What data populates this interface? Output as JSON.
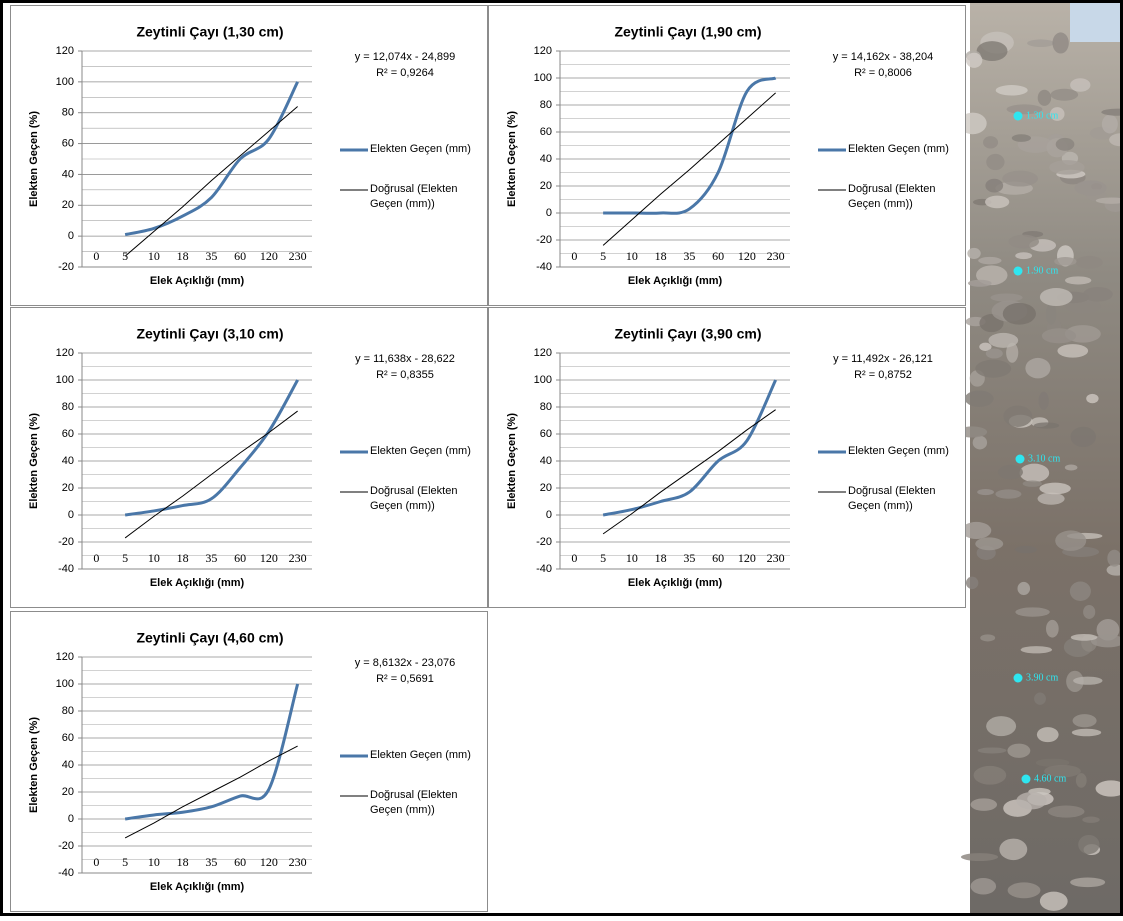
{
  "chart_data": [
    {
      "type": "line",
      "title": "Zeytinli Çayı (1,30 cm)",
      "y_label": "Elekten Geçen (%)",
      "x_label": "Elek Açıklığı (mm)",
      "categories": [
        "0",
        "5",
        "10",
        "18",
        "35",
        "60",
        "120",
        "230"
      ],
      "series": [
        {
          "name": "Elekten Geçen (mm)",
          "color": "#4a77a8",
          "values": [
            null,
            1,
            5,
            13,
            25,
            50,
            63,
            100
          ]
        },
        {
          "name": "Doğrusal (Elekten Geçen (mm))",
          "color": "#000000",
          "values": [
            null,
            -13,
            3,
            19,
            36,
            52,
            68,
            84
          ]
        }
      ],
      "annotations": [
        "y = 12,074x - 24,899",
        "R² = 0,9264"
      ],
      "ylim": [
        -20,
        120
      ],
      "yticks": [
        -20,
        0,
        20,
        40,
        60,
        80,
        100,
        120
      ],
      "grid": true
    },
    {
      "type": "line",
      "title": "Zeytinli Çayı (1,90 cm)",
      "y_label": "Elekten Geçen (%)",
      "x_label": "Elek Açıklığı (mm)",
      "categories": [
        "0",
        "5",
        "10",
        "18",
        "35",
        "60",
        "120",
        "230"
      ],
      "series": [
        {
          "name": "Elekten Geçen (mm)",
          "color": "#4a77a8",
          "values": [
            null,
            0,
            0,
            0,
            3,
            30,
            90,
            100
          ]
        },
        {
          "name": "Doğrusal (Elekten Geçen (mm))",
          "color": "#000000",
          "values": [
            null,
            -24,
            -5,
            14,
            32,
            51,
            70,
            89
          ]
        }
      ],
      "annotations": [
        "y = 14,162x - 38,204",
        "R² = 0,8006"
      ],
      "ylim": [
        -40,
        120
      ],
      "yticks": [
        -40,
        -20,
        0,
        20,
        40,
        60,
        80,
        100,
        120
      ],
      "grid": true
    },
    {
      "type": "line",
      "title": "Zeytinli Çayı (3,10 cm)",
      "y_label": "Elekten Geçen (%)",
      "x_label": "Elek Açıklığı (mm)",
      "categories": [
        "0",
        "5",
        "10",
        "18",
        "35",
        "60",
        "120",
        "230"
      ],
      "series": [
        {
          "name": "Elekten Geçen (mm)",
          "color": "#4a77a8",
          "values": [
            null,
            0,
            3,
            7,
            12,
            35,
            62,
            100
          ]
        },
        {
          "name": "Doğrusal (Elekten Geçen (mm))",
          "color": "#000000",
          "values": [
            null,
            -17,
            -1,
            14,
            30,
            46,
            61,
            77
          ]
        }
      ],
      "annotations": [
        "y = 11,638x - 28,622",
        "R² = 0,8355"
      ],
      "ylim": [
        -40,
        120
      ],
      "yticks": [
        -40,
        -20,
        0,
        20,
        40,
        60,
        80,
        100,
        120
      ],
      "grid": true
    },
    {
      "type": "line",
      "title": "Zeytinli Çayı (3,90 cm)",
      "y_label": "Elekten Geçen (%)",
      "x_label": "Elek Açıklığı (mm)",
      "categories": [
        "0",
        "5",
        "10",
        "18",
        "35",
        "60",
        "120",
        "230"
      ],
      "series": [
        {
          "name": "Elekten Geçen (mm)",
          "color": "#4a77a8",
          "values": [
            null,
            0,
            4,
            10,
            17,
            40,
            55,
            100
          ]
        },
        {
          "name": "Doğrusal (Elekten Geçen (mm))",
          "color": "#000000",
          "values": [
            null,
            -14,
            1,
            17,
            32,
            47,
            63,
            78
          ]
        }
      ],
      "annotations": [
        "y = 11,492x - 26,121",
        "R² = 0,8752"
      ],
      "ylim": [
        -40,
        120
      ],
      "yticks": [
        -40,
        -20,
        0,
        20,
        40,
        60,
        80,
        100,
        120
      ],
      "grid": true
    },
    {
      "type": "line",
      "title": "Zeytinli Çayı (4,60 cm)",
      "y_label": "Elekten Geçen (%)",
      "x_label": "Elek Açıklığı (mm)",
      "categories": [
        "0",
        "5",
        "10",
        "18",
        "35",
        "60",
        "120",
        "230"
      ],
      "series": [
        {
          "name": "Elekten Geçen (mm)",
          "color": "#4a77a8",
          "values": [
            null,
            0,
            3,
            5,
            9,
            17,
            22,
            100
          ]
        },
        {
          "name": "Doğrusal (Elekten Geçen (mm))",
          "color": "#000000",
          "values": [
            null,
            -14,
            -3,
            9,
            20,
            31,
            43,
            54
          ]
        }
      ],
      "annotations": [
        "y = 8,6132x - 23,076",
        "R² = 0,5691"
      ],
      "ylim": [
        -40,
        120
      ],
      "yticks": [
        -40,
        -20,
        0,
        20,
        40,
        60,
        80,
        100,
        120
      ],
      "grid": true
    }
  ],
  "photo": {
    "labels": [
      "1.30 cm",
      "1.90 cm",
      "3.10 cm",
      "3.90 cm",
      "4.60 cm"
    ]
  }
}
